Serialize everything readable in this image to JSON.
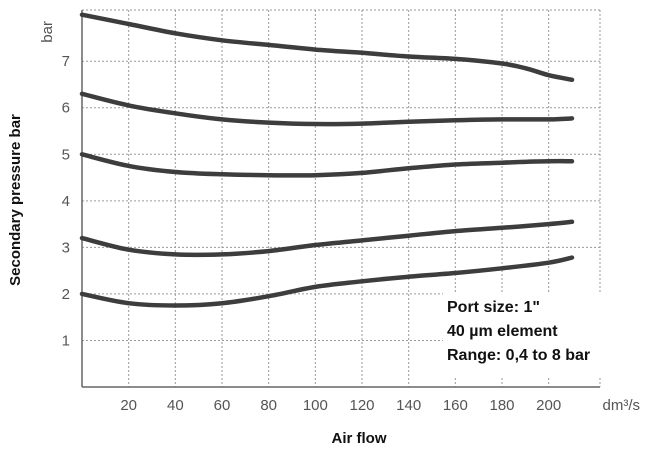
{
  "chart_data": {
    "type": "line",
    "title": "",
    "xlabel": "Air flow",
    "ylabel": "Secondary pressure bar",
    "x_unit_label": "dm³/s",
    "y_unit_label": "bar",
    "xlim": [
      0,
      222
    ],
    "ylim": [
      0,
      8.1
    ],
    "x_ticks": [
      20,
      40,
      60,
      80,
      100,
      120,
      140,
      160,
      180,
      200
    ],
    "y_ticks": [
      1,
      2,
      3,
      4,
      5,
      6,
      7
    ],
    "grid": true,
    "series": [
      {
        "x": [
          0,
          20,
          40,
          60,
          80,
          100,
          120,
          140,
          160,
          180,
          190,
          200,
          210
        ],
        "values": [
          8.0,
          7.8,
          7.6,
          7.45,
          7.35,
          7.25,
          7.18,
          7.1,
          7.05,
          6.95,
          6.85,
          6.7,
          6.6
        ]
      },
      {
        "x": [
          0,
          20,
          40,
          60,
          80,
          100,
          120,
          140,
          160,
          180,
          200,
          210
        ],
        "values": [
          6.3,
          6.05,
          5.88,
          5.75,
          5.68,
          5.65,
          5.66,
          5.7,
          5.73,
          5.75,
          5.75,
          5.77
        ]
      },
      {
        "x": [
          0,
          20,
          40,
          60,
          80,
          100,
          120,
          140,
          160,
          180,
          200,
          210
        ],
        "values": [
          5.0,
          4.75,
          4.62,
          4.57,
          4.55,
          4.55,
          4.6,
          4.7,
          4.78,
          4.82,
          4.85,
          4.85
        ]
      },
      {
        "x": [
          0,
          20,
          40,
          60,
          80,
          100,
          120,
          140,
          160,
          180,
          200,
          210
        ],
        "values": [
          3.2,
          2.95,
          2.85,
          2.85,
          2.92,
          3.05,
          3.15,
          3.25,
          3.35,
          3.42,
          3.5,
          3.55
        ]
      },
      {
        "x": [
          0,
          20,
          40,
          60,
          80,
          100,
          120,
          140,
          160,
          180,
          200,
          210
        ],
        "values": [
          2.0,
          1.8,
          1.75,
          1.8,
          1.95,
          2.15,
          2.27,
          2.37,
          2.45,
          2.55,
          2.67,
          2.78
        ]
      }
    ],
    "annotations": [
      "Port size: 1\"",
      "40 µm element",
      "Range: 0,4 to 8 bar"
    ],
    "legend": "none"
  },
  "colors": {
    "curve": "#3d3d3d",
    "grid": "#9a9a9a",
    "axis": "#666666",
    "text": "#111111",
    "tick_text": "#555555"
  }
}
